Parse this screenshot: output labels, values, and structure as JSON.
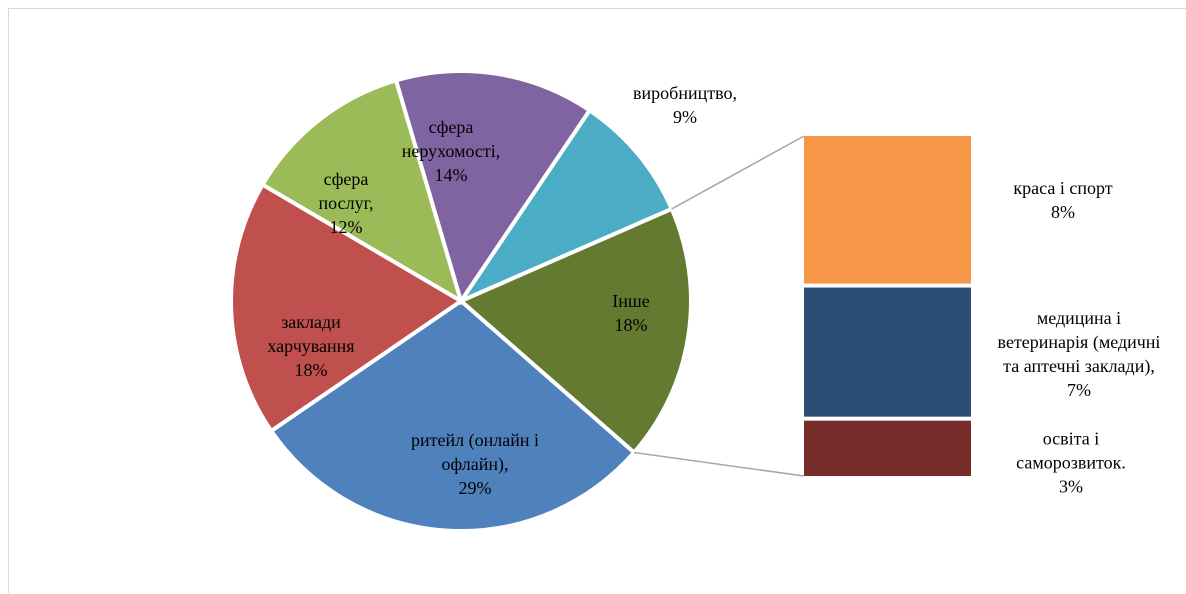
{
  "chart_data": {
    "type": "pie",
    "subtype": "bar-of-pie",
    "title": "",
    "pie": {
      "slices": [
        {
          "label_lines": [
            "виробництво,"
          ],
          "value_text": "9%",
          "value": 9,
          "color": "#4bacc6"
        },
        {
          "label_lines": [
            "Інше"
          ],
          "value_text": "18%",
          "value": 18,
          "color": "#647a31"
        },
        {
          "label_lines": [
            "ритейл (онлайн і",
            "офлайн),"
          ],
          "value_text": "29%",
          "value": 29,
          "color": "#4f81bd"
        },
        {
          "label_lines": [
            "заклади",
            "харчування"
          ],
          "value_text": "18%",
          "value": 18,
          "color": "#c0504d"
        },
        {
          "label_lines": [
            "сфера",
            "послуг,"
          ],
          "value_text": "12%",
          "value": 12,
          "color": "#9bbb59"
        },
        {
          "label_lines": [
            "сфера",
            "нерухомості,"
          ],
          "value_text": "14%",
          "value": 14,
          "color": "#8064a2"
        }
      ]
    },
    "bar": {
      "parent": "Інше",
      "segments": [
        {
          "label_lines": [
            "краса і спорт"
          ],
          "value_text": "8%",
          "value": 8,
          "color": "#f79646"
        },
        {
          "label_lines": [
            "медицина і",
            "ветеринарія (медичні",
            "та аптечні заклади),"
          ],
          "value_text": "7%",
          "value": 7,
          "color": "#2c4d75"
        },
        {
          "label_lines": [
            "освіта і",
            "саморозвиток."
          ],
          "value_text": "3%",
          "value": 3,
          "color": "#772c2a"
        }
      ]
    },
    "legend": "none",
    "grid": false
  }
}
